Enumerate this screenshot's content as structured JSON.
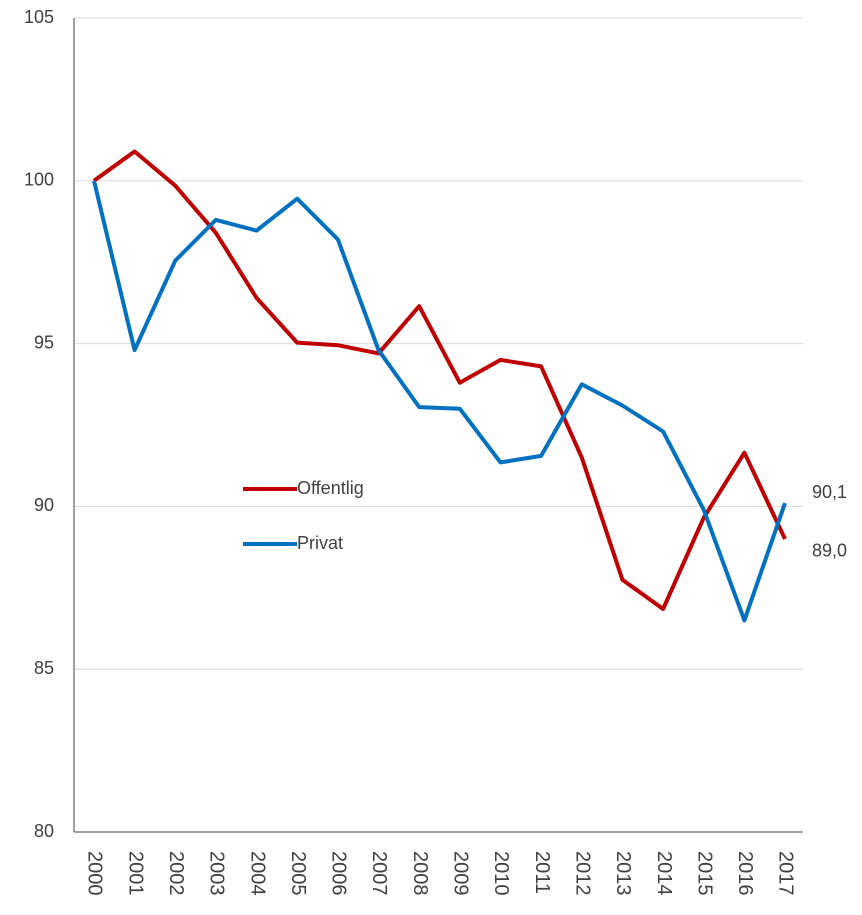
{
  "chart_data": {
    "type": "line",
    "categories": [
      "2000",
      "2001",
      "2002",
      "2003",
      "2004",
      "2005",
      "2006",
      "2007",
      "2008",
      "2009",
      "2010",
      "2011",
      "2012",
      "2013",
      "2014",
      "2015",
      "2016",
      "2017"
    ],
    "series": [
      {
        "name": "Offentlig",
        "color": "#c00000",
        "values": [
          100,
          100.9,
          99.85,
          98.4,
          96.4,
          95.03,
          94.95,
          94.7,
          96.15,
          93.8,
          94.5,
          94.3,
          91.5,
          87.75,
          86.85,
          89.65,
          91.65,
          89.0
        ],
        "value_labels": [
          null,
          null,
          null,
          null,
          null,
          null,
          null,
          null,
          null,
          null,
          null,
          null,
          null,
          null,
          null,
          null,
          null,
          "89,0"
        ]
      },
      {
        "name": "Privat",
        "color": "#0070c0",
        "values": [
          100,
          94.8,
          97.55,
          98.8,
          98.47,
          99.45,
          98.2,
          94.8,
          93.05,
          93.0,
          91.35,
          91.55,
          93.75,
          93.1,
          92.3,
          89.9,
          86.5,
          90.1
        ],
        "value_labels": [
          null,
          null,
          null,
          null,
          null,
          null,
          null,
          null,
          null,
          null,
          null,
          null,
          null,
          null,
          null,
          null,
          null,
          "90,1"
        ]
      }
    ],
    "ylim": [
      80,
      105
    ],
    "yticks": [
      80,
      85,
      90,
      95,
      100,
      105
    ],
    "grid": true,
    "legend": "center"
  }
}
